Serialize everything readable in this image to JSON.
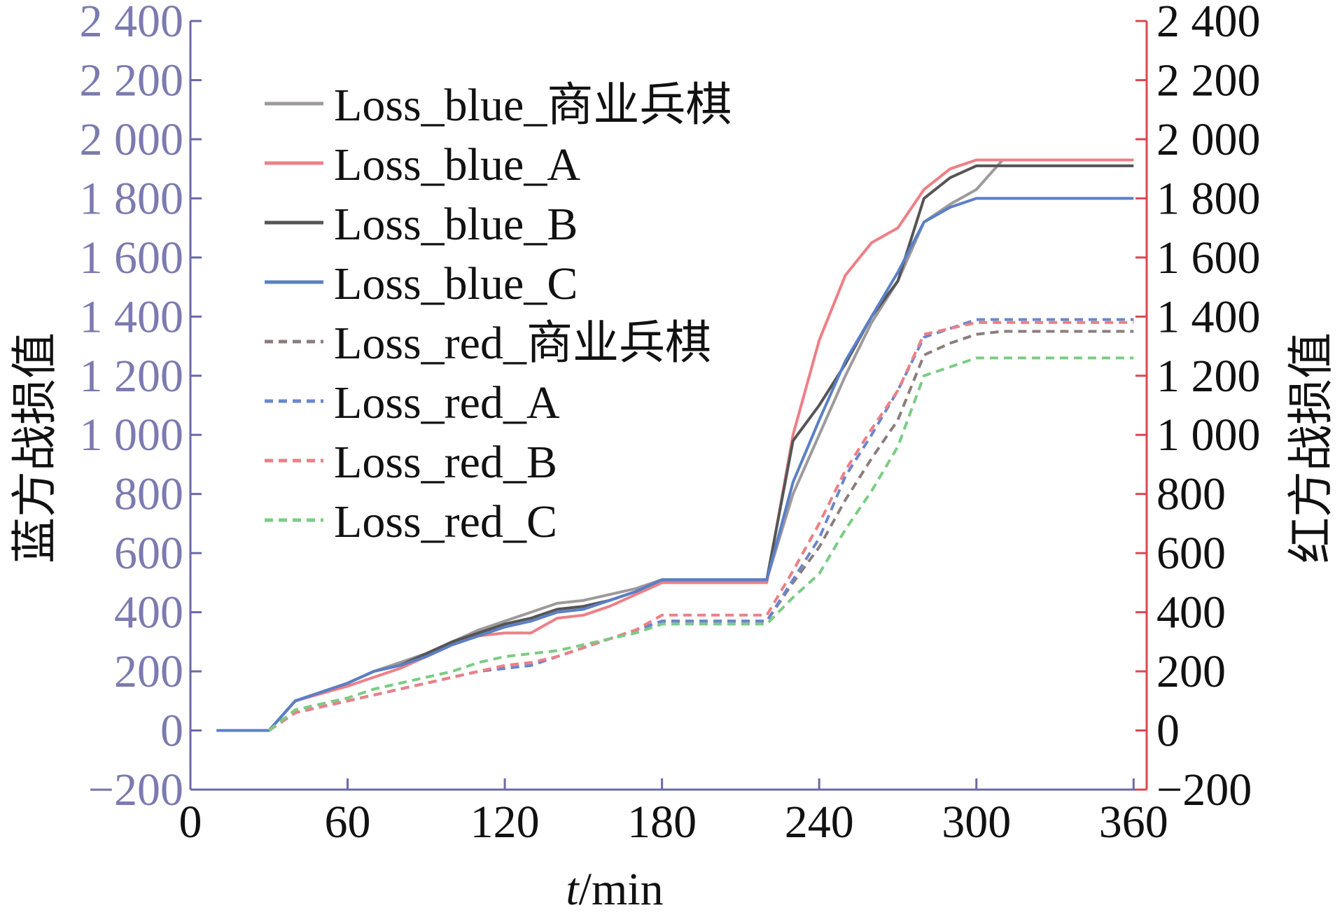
{
  "chart_data": {
    "type": "line",
    "xlabel_italic": "t",
    "xlabel_rest": "/min",
    "ylabel_left": "蓝方战损值",
    "ylabel_right": "红方战损值",
    "xlim": [
      0,
      365
    ],
    "xticks": [
      0,
      60,
      120,
      180,
      240,
      300,
      360
    ],
    "ylim_left": [
      -200,
      2400
    ],
    "ylim_right": [
      -200,
      2400
    ],
    "yticks_left": [
      -200,
      0,
      200,
      400,
      600,
      800,
      1000,
      1200,
      1400,
      1600,
      1800,
      2000,
      2200,
      2400
    ],
    "yticks_left_labels": [
      "−200",
      "0",
      "200",
      "400",
      "600",
      "800",
      "1 000",
      "1 200",
      "1 400",
      "1 600",
      "1 800",
      "2 000",
      "2 200",
      "2 400"
    ],
    "yticks_right": [
      -200,
      0,
      200,
      400,
      600,
      800,
      1000,
      1200,
      1400,
      1600,
      1800,
      2000,
      2200,
      2400
    ],
    "yticks_right_labels": [
      "−200",
      "0",
      "200",
      "400",
      "600",
      "800",
      "1 000",
      "1 200",
      "1 400",
      "1 600",
      "1 800",
      "2 000",
      "2 200",
      "2 400"
    ],
    "colors": {
      "left_axis": "#7b7bb0",
      "right_axis": "#d9484f",
      "axis_line": "#6a6aa8",
      "text": "#111111"
    },
    "legend_position": "top-left",
    "series": [
      {
        "name": "Loss_blue_商业兵棋",
        "color": "#9e9a9a",
        "dash": false,
        "width": 4,
        "x": [
          10,
          30,
          40,
          60,
          70,
          80,
          90,
          100,
          110,
          120,
          130,
          140,
          150,
          160,
          170,
          180,
          190,
          200,
          210,
          220,
          230,
          240,
          250,
          260,
          270,
          280,
          290,
          300,
          310,
          320,
          330,
          340,
          350,
          360
        ],
        "y": [
          0,
          0,
          100,
          160,
          200,
          230,
          260,
          300,
          340,
          370,
          400,
          430,
          440,
          460,
          480,
          510,
          510,
          510,
          510,
          510,
          800,
          1000,
          1200,
          1380,
          1520,
          1720,
          1780,
          1830,
          1930,
          1930,
          1930,
          1930,
          1930,
          1930
        ]
      },
      {
        "name": "Loss_blue_A",
        "color": "#ee7f85",
        "dash": false,
        "width": 4,
        "x": [
          10,
          30,
          40,
          60,
          70,
          80,
          90,
          100,
          110,
          120,
          130,
          140,
          150,
          160,
          170,
          180,
          190,
          200,
          210,
          220,
          230,
          240,
          250,
          260,
          270,
          280,
          290,
          300,
          310,
          320,
          330,
          340,
          350,
          360
        ],
        "y": [
          0,
          0,
          100,
          150,
          180,
          210,
          250,
          290,
          320,
          330,
          330,
          380,
          390,
          420,
          460,
          500,
          500,
          500,
          500,
          500,
          1000,
          1320,
          1540,
          1650,
          1700,
          1830,
          1900,
          1930,
          1930,
          1930,
          1930,
          1930,
          1930,
          1930
        ]
      },
      {
        "name": "Loss_blue_B",
        "color": "#555555",
        "dash": false,
        "width": 4,
        "x": [
          10,
          30,
          40,
          60,
          70,
          80,
          90,
          100,
          110,
          120,
          130,
          140,
          150,
          160,
          170,
          180,
          190,
          200,
          210,
          220,
          230,
          240,
          250,
          260,
          270,
          280,
          290,
          300,
          310,
          320,
          330,
          340,
          350,
          360
        ],
        "y": [
          0,
          0,
          100,
          160,
          200,
          220,
          260,
          300,
          330,
          360,
          380,
          410,
          420,
          440,
          470,
          510,
          510,
          510,
          510,
          510,
          980,
          1100,
          1240,
          1400,
          1520,
          1800,
          1870,
          1910,
          1910,
          1910,
          1910,
          1910,
          1910,
          1910
        ]
      },
      {
        "name": "Loss_blue_C",
        "color": "#5b7fc7",
        "dash": false,
        "width": 4,
        "x": [
          10,
          30,
          40,
          60,
          70,
          80,
          90,
          100,
          110,
          120,
          130,
          140,
          150,
          160,
          170,
          180,
          190,
          200,
          210,
          220,
          230,
          240,
          250,
          260,
          270,
          280,
          290,
          300,
          310,
          320,
          330,
          340,
          350,
          360
        ],
        "y": [
          0,
          0,
          100,
          160,
          200,
          220,
          250,
          290,
          320,
          350,
          370,
          400,
          410,
          440,
          470,
          510,
          510,
          510,
          510,
          510,
          840,
          1050,
          1250,
          1400,
          1550,
          1720,
          1770,
          1800,
          1800,
          1800,
          1800,
          1800,
          1800,
          1800
        ]
      },
      {
        "name": "Loss_red_商业兵棋",
        "color": "#8c7d7d",
        "dash": true,
        "width": 4,
        "x": [
          30,
          40,
          60,
          70,
          80,
          90,
          100,
          110,
          120,
          130,
          140,
          150,
          160,
          170,
          180,
          190,
          200,
          210,
          220,
          230,
          240,
          250,
          260,
          270,
          280,
          290,
          300,
          310,
          320,
          330,
          340,
          350,
          360
        ],
        "y": [
          0,
          60,
          100,
          120,
          140,
          160,
          180,
          200,
          210,
          220,
          250,
          280,
          310,
          340,
          370,
          370,
          370,
          370,
          370,
          500,
          620,
          780,
          920,
          1050,
          1270,
          1310,
          1340,
          1350,
          1350,
          1350,
          1350,
          1350,
          1350
        ]
      },
      {
        "name": "Loss_red_A",
        "color": "#6b86cc",
        "dash": true,
        "width": 4,
        "x": [
          30,
          40,
          60,
          70,
          80,
          90,
          100,
          110,
          120,
          130,
          140,
          150,
          160,
          170,
          180,
          190,
          200,
          210,
          220,
          230,
          240,
          250,
          260,
          270,
          280,
          290,
          300,
          310,
          320,
          330,
          340,
          350,
          360
        ],
        "y": [
          0,
          60,
          100,
          120,
          140,
          160,
          180,
          200,
          210,
          220,
          250,
          280,
          310,
          340,
          370,
          370,
          370,
          370,
          370,
          510,
          650,
          860,
          1000,
          1150,
          1330,
          1360,
          1390,
          1390,
          1390,
          1390,
          1390,
          1390,
          1390
        ]
      },
      {
        "name": "Loss_red_B",
        "color": "#ee7f85",
        "dash": true,
        "width": 4,
        "x": [
          30,
          40,
          60,
          70,
          80,
          90,
          100,
          110,
          120,
          130,
          140,
          150,
          160,
          170,
          180,
          190,
          200,
          210,
          220,
          230,
          240,
          250,
          260,
          270,
          280,
          290,
          300,
          310,
          320,
          330,
          340,
          350,
          360
        ],
        "y": [
          0,
          60,
          100,
          120,
          140,
          160,
          180,
          200,
          220,
          230,
          250,
          280,
          310,
          340,
          390,
          390,
          390,
          390,
          390,
          540,
          700,
          880,
          1020,
          1150,
          1340,
          1360,
          1380,
          1380,
          1380,
          1380,
          1380,
          1380,
          1380
        ]
      },
      {
        "name": "Loss_red_C",
        "color": "#7bcc84",
        "dash": true,
        "width": 4,
        "x": [
          30,
          40,
          60,
          70,
          80,
          90,
          100,
          110,
          120,
          130,
          140,
          150,
          160,
          170,
          180,
          190,
          200,
          210,
          220,
          230,
          240,
          250,
          260,
          270,
          280,
          290,
          300,
          310,
          320,
          330,
          340,
          350,
          360
        ],
        "y": [
          0,
          70,
          110,
          140,
          160,
          180,
          200,
          230,
          250,
          260,
          270,
          290,
          310,
          330,
          360,
          360,
          360,
          360,
          360,
          450,
          530,
          680,
          810,
          960,
          1200,
          1230,
          1260,
          1260,
          1260,
          1260,
          1260,
          1260,
          1260
        ]
      }
    ]
  }
}
